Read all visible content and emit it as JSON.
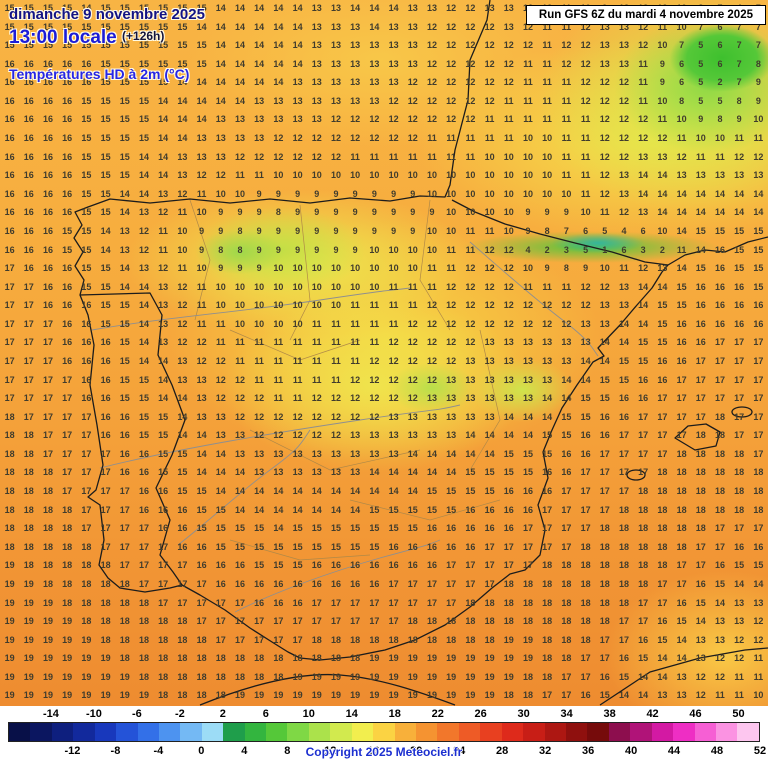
{
  "header": {
    "date": "dimanche 9 novembre 2025",
    "time": "13:00 locale",
    "offset": "(+126h)",
    "variable": "Températures HD à 2m (°C)"
  },
  "run_box": {
    "label": "Run GFS 6Z du mardi 4 novembre 2025"
  },
  "footer": {
    "copyright": "Copyright 2025 Meteociel.fr"
  },
  "scale": {
    "unit": "°C",
    "min_value": -18,
    "max_value": 52,
    "top_labels": [
      "-14",
      "-10",
      "-6",
      "-2",
      "2",
      "6",
      "10",
      "14",
      "18",
      "22",
      "26",
      "30",
      "34",
      "38",
      "42",
      "46",
      "50"
    ],
    "bottom_labels": [
      "-12",
      "-8",
      "-4",
      "0",
      "4",
      "8",
      "12",
      "16",
      "20",
      "24",
      "28",
      "32",
      "36",
      "40",
      "44",
      "48",
      "52"
    ],
    "colors": [
      "#081048",
      "#0b1660",
      "#0e1f7e",
      "#12299c",
      "#1838bc",
      "#2453d8",
      "#3370e8",
      "#4d93f0",
      "#74b9f4",
      "#9cdcf6",
      "#1f9e4b",
      "#33b53f",
      "#55c839",
      "#7fd845",
      "#abe24b",
      "#d2ea4e",
      "#f2ee4e",
      "#fbd343",
      "#f8b03a",
      "#f59331",
      "#f2772b",
      "#ee5b26",
      "#e84020",
      "#de2a1b",
      "#c81e16",
      "#ad1712",
      "#8f100e",
      "#760b0b",
      "#8d0e4e",
      "#b01378",
      "#d319a3",
      "#ee2ec4",
      "#f65fd4",
      "#fb93e2",
      "#fdc6ef"
    ]
  },
  "grid": {
    "cols": 40,
    "rows": [
      "15 15 15 15 14 15 15 15 15 15 15 14 14 14 14 14 13 13 14 14 14 13 13 12 12 13 13 12 12 11 10 9 13 13 12 10 8 7 4 7",
      "15 15 15 15 15 15 15 15 15 15 14 14 14 14 14 14 13 13 13 14 13 13 12 12 12 12 13 12 11 11 12 13 13 12 11 10 7 6 7 7",
      "15 15 15 15 15 15 15 15 15 15 15 14 14 14 14 14 13 13 13 13 13 13 12 12 12 12 12 12 11 12 12 13 13 12 10 7 5 6 7 7",
      "16 16 16 16 16 15 15 15 15 15 15 14 14 14 14 14 13 13 13 13 13 13 12 12 12 12 12 11 11 12 12 13 13 11 9 6 5 6 7 8",
      "16 16 16 16 16 15 15 15 15 14 14 14 14 14 14 13 13 13 13 13 13 12 12 12 12 12 12 11 11 11 12 12 12 11 9 6 5 2 7 9",
      "16 16 16 16 15 15 15 15 14 14 14 14 14 13 13 13 13 13 13 13 12 12 12 12 12 12 11 11 11 11 12 12 12 11 10 8 5 5 8 9",
      "16 16 16 16 15 15 15 15 14 14 14 13 13 13 13 13 13 12 12 12 12 12 12 12 12 11 11 11 11 11 11 12 12 12 11 10 9 8 9 10",
      "16 16 16 16 15 15 15 15 14 14 13 13 13 13 12 12 12 12 12 12 12 12 11 11 11 11 11 10 10 11 11 12 12 12 12 11 10 10 11 11",
      "16 16 16 16 15 15 15 14 14 13 13 13 12 12 12 12 12 12 11 11 11 11 11 11 11 10 10 10 10 11 11 12 12 13 13 12 11 11 12 12",
      "16 16 16 16 15 15 15 14 14 13 12 12 11 11 10 10 10 10 10 10 10 10 10 10 10 10 10 10 10 11 11 12 13 14 14 13 13 13 13 13",
      "16 16 16 16 15 15 14 14 13 12 11 10 10 9 9 9 9 9 9 9 9 9 10 10 10 10 10 10 10 10 11 12 13 14 14 14 14 14 14 14",
      "16 16 16 16 15 15 14 13 12 11 10 9 9 9 8 9 9 9 9 9 9 9 9 10 10 10 10 9 9 9 10 11 12 13 14 14 14 14 14 14",
      "16 16 16 15 15 14 13 12 11 10 9 9 8 9 9 9 9 9 9 9 9 9 10 10 11 11 10 9 8 7 6 5 4 6 10 14 15 15 15 15",
      "16 16 16 15 15 14 13 12 11 10 9 8 8 9 9 9 9 9 9 10 10 10 10 11 11 12 12 4 2 3 5 1 6 3 2 11 14 16 15 15",
      "17 16 16 16 15 15 14 13 12 11 10 9 9 9 10 10 10 10 10 10 10 10 11 11 12 12 12 10 9 8 9 10 11 12 13 14 15 16 15 15",
      "17 17 16 16 15 15 14 14 13 12 11 10 10 10 10 10 10 10 10 10 11 11 11 12 12 12 12 11 11 11 12 12 13 14 14 15 16 16 16 15",
      "17 17 16 16 16 15 15 14 13 12 11 10 10 10 10 10 10 10 11 11 11 11 12 12 12 12 12 12 12 12 12 13 13 14 15 15 16 16 16 16",
      "17 17 17 16 16 15 15 14 13 12 11 11 10 10 10 10 11 11 11 11 11 12 12 12 12 12 12 12 12 12 13 13 14 14 15 16 16 16 16 16",
      "17 17 17 16 16 16 15 14 13 12 12 11 11 11 11 11 11 11 11 11 12 12 12 12 12 13 13 13 13 13 13 14 14 15 15 16 16 17 17 17",
      "17 17 17 16 16 16 15 14 14 13 12 12 11 11 11 11 11 11 11 12 12 12 12 12 13 13 13 13 13 13 14 14 15 15 16 16 17 17 17 17",
      "17 17 17 17 16 16 15 15 14 13 13 12 12 11 11 11 11 11 12 12 12 12 12 13 13 13 13 13 13 14 14 15 15 16 16 17 17 17 17 17",
      "17 17 17 17 16 16 15 15 14 14 13 12 12 12 11 11 12 12 12 12 12 12 13 13 13 13 13 13 14 14 15 15 16 16 17 17 17 17 17 17",
      "18 17 17 17 17 16 16 15 15 14 13 13 12 12 12 12 12 12 12 12 13 13 13 13 13 13 14 14 14 15 15 16 16 17 17 17 17 18 17 17",
      "18 18 17 17 17 16 16 15 15 14 14 13 13 12 12 12 12 12 13 13 13 13 13 13 14 14 14 14 15 15 16 16 17 17 17 17 18 18 17 17",
      "18 18 17 17 17 17 16 16 15 15 14 14 13 13 13 13 13 13 13 13 13 14 14 14 14 14 15 15 15 16 16 17 17 17 17 18 18 18 18 17",
      "18 18 18 17 17 17 16 16 15 15 14 14 14 13 13 13 13 13 13 14 14 14 14 14 15 15 15 15 16 16 17 17 17 17 18 18 18 18 18 18",
      "18 18 18 17 17 17 17 16 16 15 15 14 14 14 14 14 14 14 14 14 14 14 15 15 15 15 16 16 16 17 17 17 17 18 18 18 18 18 18 18",
      "18 18 18 18 17 17 17 16 16 16 15 15 14 14 14 14 14 14 14 15 15 15 15 15 16 16 16 16 17 17 17 17 18 18 18 18 18 18 18 18",
      "18 18 18 18 17 17 17 17 16 16 15 15 15 15 14 15 15 15 15 15 15 15 16 16 16 16 16 17 17 17 17 18 18 18 18 18 18 17 17 17",
      "18 18 18 18 18 17 17 17 17 16 16 15 15 15 15 15 15 15 15 15 16 16 16 16 16 17 17 17 17 17 18 18 18 18 18 18 17 17 16 16",
      "19 18 18 18 18 18 17 17 17 17 16 16 16 15 15 15 16 16 16 16 16 16 16 17 17 17 17 17 18 18 18 18 18 18 18 17 17 16 15 15",
      "19 19 18 18 18 18 18 17 17 17 17 16 16 16 16 16 16 16 16 16 17 17 17 17 17 17 18 18 18 18 18 18 18 18 17 17 16 15 14 14",
      "19 19 19 18 18 18 18 18 17 17 17 17 17 16 16 16 17 17 17 17 17 17 17 17 18 18 18 18 18 18 18 18 18 17 17 16 15 14 13 13",
      "19 19 19 19 18 18 18 18 18 18 17 17 17 17 17 17 17 17 17 17 17 18 18 18 18 18 18 18 18 18 18 18 17 17 16 15 14 13 13 12",
      "19 19 19 19 19 18 18 18 18 18 18 17 17 17 17 17 18 18 18 18 18 18 18 18 18 18 19 19 18 18 18 17 17 16 15 14 13 13 12 12",
      "19 19 19 19 19 19 18 18 18 18 18 18 18 18 18 18 18 18 18 19 19 19 19 19 19 19 19 19 18 18 17 17 16 15 14 14 13 12 12 11",
      "19 19 19 19 19 19 19 18 18 18 18 18 18 18 18 19 19 19 19 19 19 19 19 19 19 19 19 18 18 17 17 16 15 14 14 13 12 12 11 11",
      "19 19 19 19 19 19 19 19 18 18 18 18 19 19 19 19 19 19 19 19 19 19 19 19 19 19 18 18 17 17 16 15 14 14 13 13 12 11 11 10"
    ]
  }
}
